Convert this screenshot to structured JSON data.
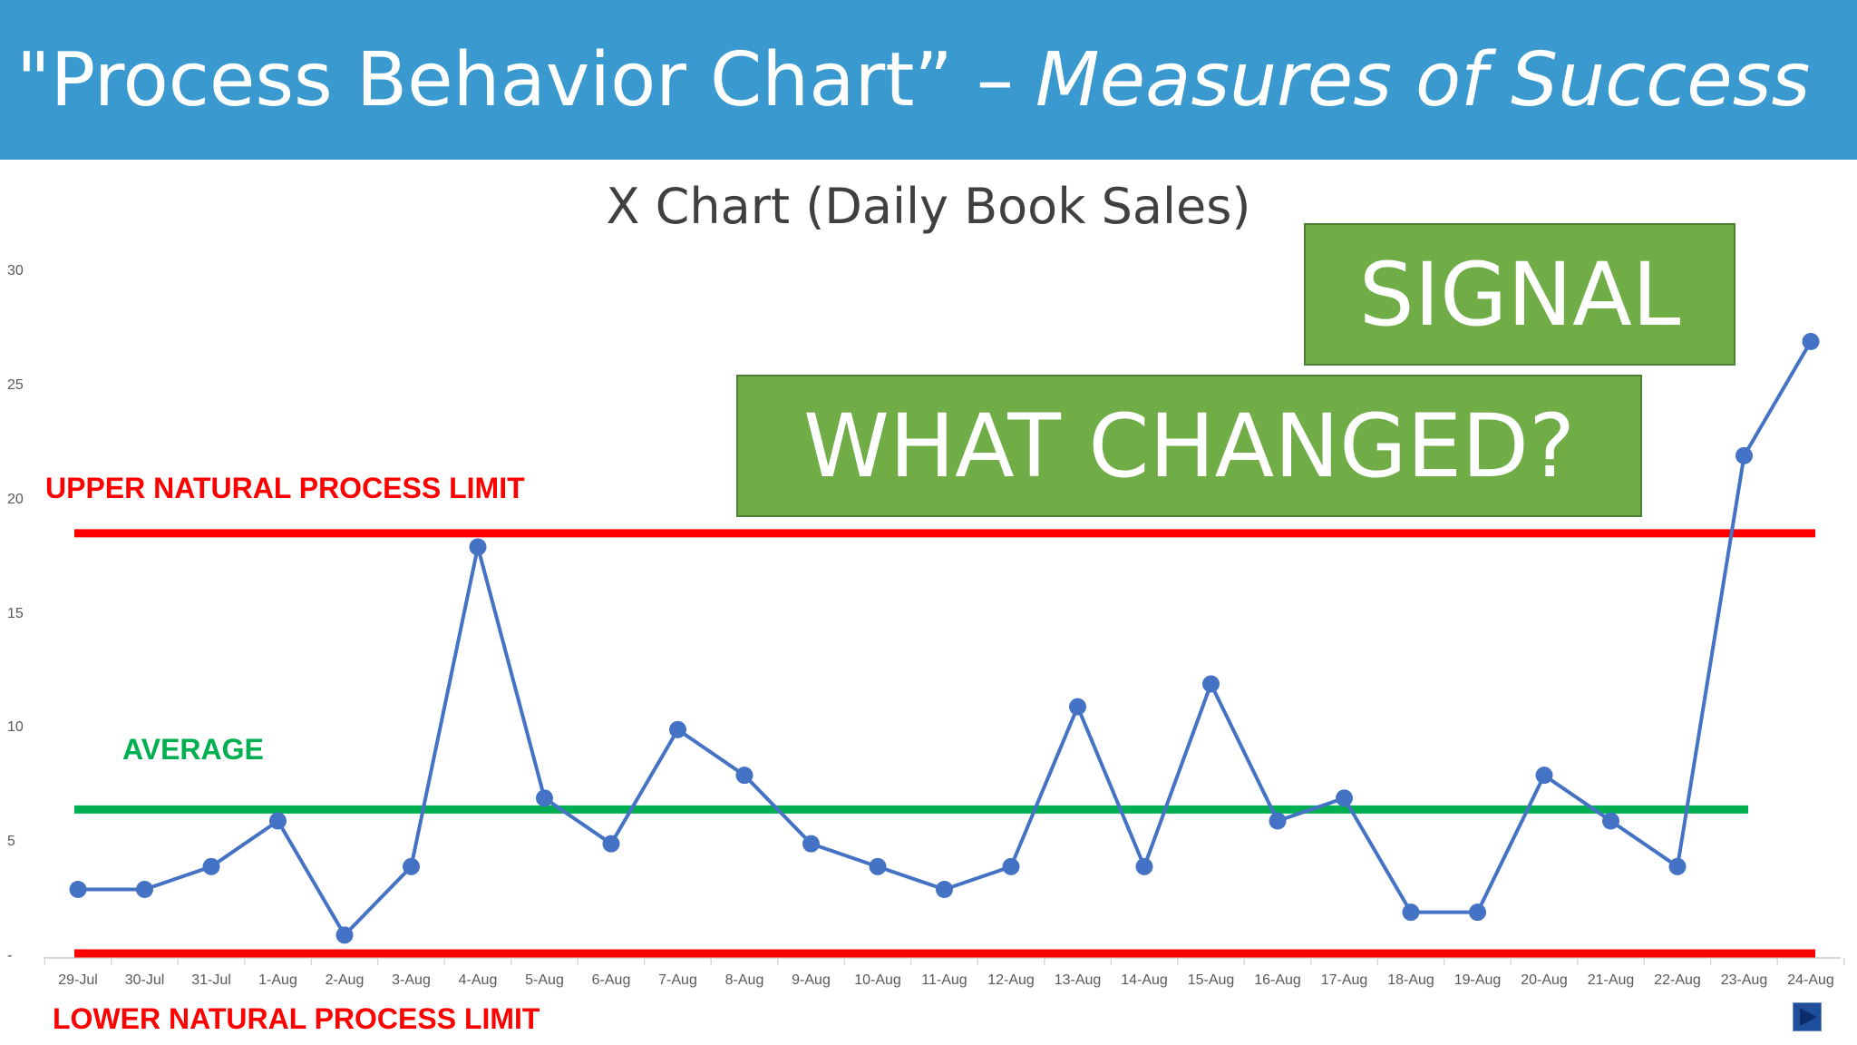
{
  "header": {
    "title_plain": "\"Process Behavior Chart” –",
    "title_italic": "Measures of Success"
  },
  "callouts": {
    "signal": "SIGNAL",
    "what_changed": "WHAT CHANGED?"
  },
  "annotations": {
    "upper": "UPPER NATURAL PROCESS LIMIT",
    "average": "AVERAGE",
    "lower": "LOWER NATURAL PROCESS LIMIT"
  },
  "colors": {
    "header": "#3a9ad0",
    "series": "#4472c4",
    "limit": "#ff0000",
    "average": "#00b050",
    "callout": "#70ad47"
  },
  "nav": {
    "icon": "play-icon"
  },
  "chart_data": {
    "type": "line",
    "title": "X Chart (Daily Book Sales)",
    "xlabel": "",
    "ylabel": "",
    "ylim": [
      0,
      30
    ],
    "yticks": [
      "-",
      "5",
      "10",
      "15",
      "20",
      "25",
      "30"
    ],
    "categories": [
      "29-Jul",
      "30-Jul",
      "31-Jul",
      "1-Aug",
      "2-Aug",
      "3-Aug",
      "4-Aug",
      "5-Aug",
      "6-Aug",
      "7-Aug",
      "8-Aug",
      "9-Aug",
      "10-Aug",
      "11-Aug",
      "12-Aug",
      "13-Aug",
      "14-Aug",
      "15-Aug",
      "16-Aug",
      "17-Aug",
      "18-Aug",
      "19-Aug",
      "20-Aug",
      "21-Aug",
      "22-Aug",
      "23-Aug",
      "24-Aug"
    ],
    "series": [
      {
        "values": [
          3,
          3,
          4,
          6,
          1,
          4,
          18,
          7,
          5,
          10,
          8,
          5,
          4,
          3,
          4,
          11,
          4,
          12,
          6,
          7,
          2,
          2,
          8,
          6,
          4,
          22,
          27
        ]
      }
    ],
    "reference_lines": {
      "upper_limit": 18.6,
      "average": 6.5,
      "lower_limit": 0.2
    },
    "grid": false,
    "legend": "none"
  }
}
